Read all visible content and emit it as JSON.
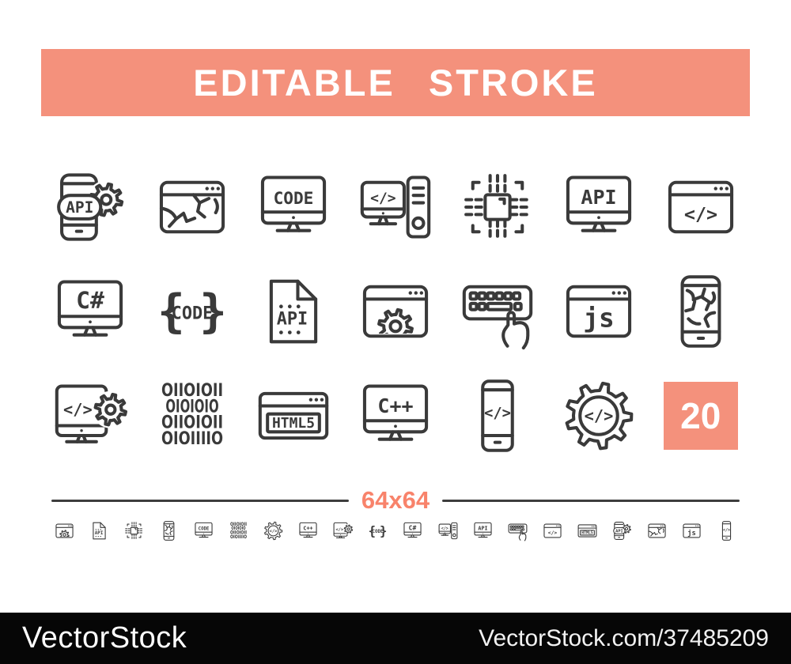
{
  "banner": {
    "label": "EDITABLE STROKE"
  },
  "colors": {
    "accent": "#f4917c",
    "accent_text": "#f8836b",
    "icon_stroke": "#3a3a3a",
    "divider_line": "#3d3d3d",
    "footer_bg": "#060606"
  },
  "grid": {
    "rows": [
      {
        "icons": [
          {
            "name": "api-phone-gear",
            "text": "API"
          },
          {
            "name": "broken-website"
          },
          {
            "name": "code-monitor",
            "text": "CODE"
          },
          {
            "name": "desktop-computer",
            "text": "</>"
          },
          {
            "name": "chip"
          },
          {
            "name": "api-monitor",
            "text": "API"
          },
          {
            "name": "code-browser",
            "text": "</>"
          }
        ]
      },
      {
        "icons": [
          {
            "name": "csharp-monitor",
            "text": "C#"
          },
          {
            "name": "code-braces",
            "text": "CODE"
          },
          {
            "name": "api-file",
            "text": "API"
          },
          {
            "name": "website-gear"
          },
          {
            "name": "keyboard-hand"
          },
          {
            "name": "js-browser",
            "text": "js"
          },
          {
            "name": "broken-phone"
          }
        ]
      },
      {
        "icons": [
          {
            "name": "monitor-code-gear",
            "text": "</>"
          },
          {
            "name": "binary-code",
            "lines": [
              "01101011",
              "0101010",
              "01101011",
              "01011110"
            ]
          },
          {
            "name": "html5-browser",
            "text": "HTML5"
          },
          {
            "name": "cpp-monitor",
            "text": "C++"
          },
          {
            "name": "code-phone",
            "text": "</>"
          },
          {
            "name": "code-gear",
            "text": "</>"
          },
          {
            "name": "count-badge",
            "text": "20"
          }
        ]
      }
    ]
  },
  "size_label": "64x64",
  "small_icons": [
    "website-gear",
    "api-file",
    "chip",
    "broken-phone",
    "code-monitor",
    "binary-code",
    "code-gear",
    "cpp-monitor",
    "monitor-code-gear",
    "code-braces",
    "csharp-monitor",
    "desktop-computer",
    "api-monitor",
    "keyboard-hand",
    "code-browser",
    "html5-browser",
    "api-phone-gear",
    "broken-website",
    "js-browser",
    "code-phone"
  ],
  "footer": {
    "brand": "VectorStock",
    "reference": "VectorStock.com/37485209"
  }
}
